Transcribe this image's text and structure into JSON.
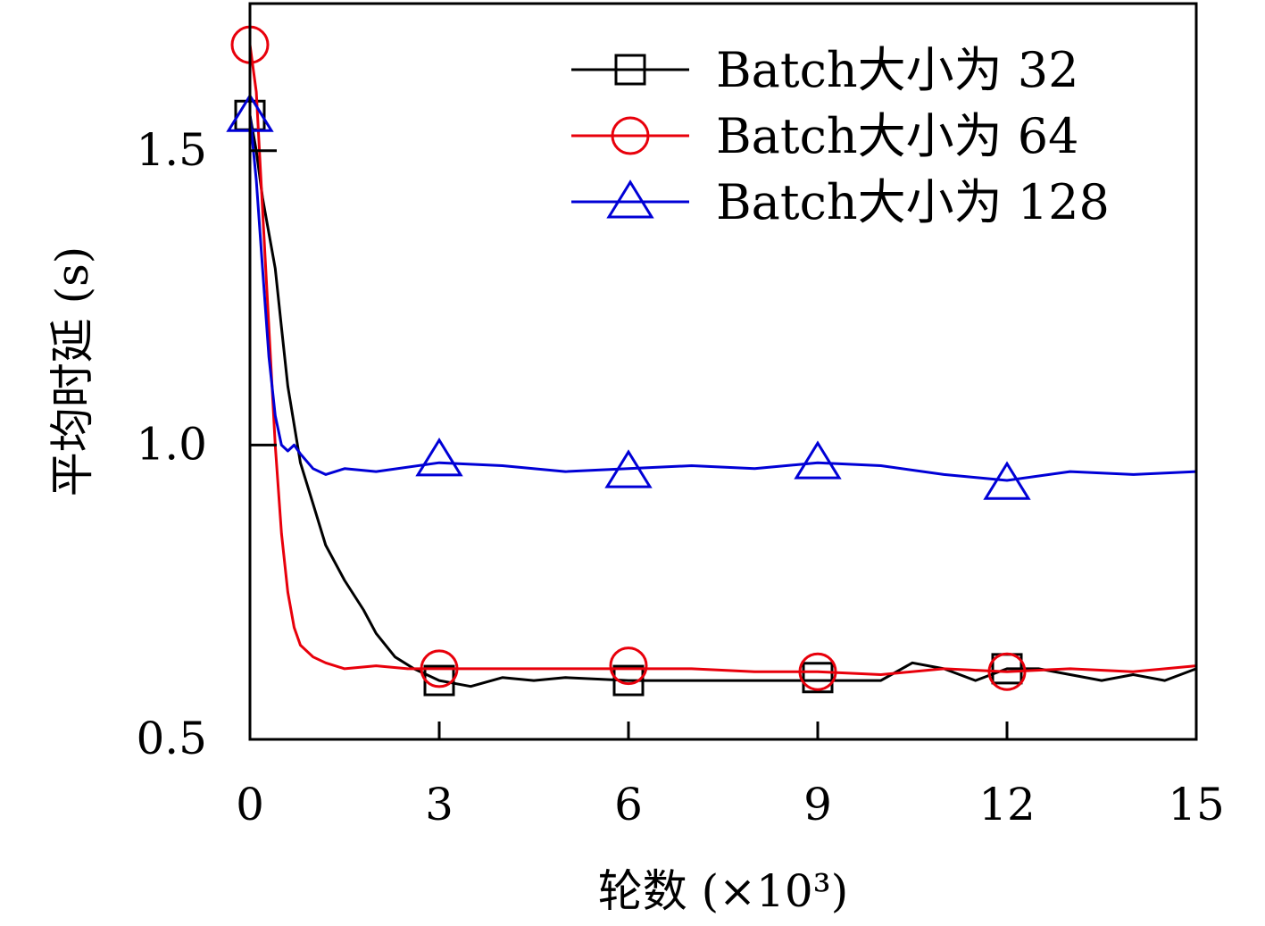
{
  "chart_data": {
    "type": "line",
    "xlabel": "轮数 (×10³)",
    "ylabel": "平均时延 (s)",
    "xlim": [
      0,
      15
    ],
    "ylim": [
      0.5,
      1.75
    ],
    "xticks": [
      0,
      3,
      6,
      9,
      12,
      15
    ],
    "xtick_labels": [
      "0",
      "3",
      "6",
      "9",
      "12",
      "15"
    ],
    "yticks": [
      0.5,
      1.0,
      1.5
    ],
    "ytick_labels": [
      "0.5",
      "1.0",
      "1.5"
    ],
    "grid": false,
    "legend_position": "top-right",
    "series": [
      {
        "name": "Batch大小为 32",
        "color": "#000000",
        "marker": "square",
        "x": [
          0,
          0.1,
          0.2,
          0.3,
          0.4,
          0.5,
          0.6,
          0.8,
          1.0,
          1.2,
          1.5,
          1.8,
          2.0,
          2.3,
          2.6,
          3.0,
          3.5,
          4.0,
          4.5,
          5.0,
          6.0,
          7.0,
          8.0,
          9.0,
          10.0,
          10.5,
          11.0,
          11.5,
          12.0,
          12.5,
          13.0,
          13.5,
          14.0,
          14.5,
          15.0
        ],
        "y": [
          1.56,
          1.5,
          1.42,
          1.36,
          1.3,
          1.2,
          1.1,
          0.97,
          0.9,
          0.83,
          0.77,
          0.72,
          0.68,
          0.64,
          0.62,
          0.6,
          0.59,
          0.605,
          0.6,
          0.605,
          0.6,
          0.6,
          0.6,
          0.6,
          0.6,
          0.63,
          0.62,
          0.6,
          0.62,
          0.62,
          0.61,
          0.6,
          0.61,
          0.6,
          0.62
        ],
        "marker_x": [
          0,
          3,
          6,
          9,
          12
        ],
        "marker_y": [
          1.56,
          0.6,
          0.6,
          0.605,
          0.62
        ]
      },
      {
        "name": "Batch大小为 64",
        "color": "#e8000b",
        "marker": "circle",
        "x": [
          0,
          0.1,
          0.2,
          0.3,
          0.4,
          0.5,
          0.6,
          0.7,
          0.8,
          1.0,
          1.2,
          1.5,
          2.0,
          2.5,
          3.0,
          4.0,
          5.0,
          6.0,
          7.0,
          8.0,
          9.0,
          10.0,
          11.0,
          12.0,
          13.0,
          14.0,
          15.0
        ],
        "y": [
          1.68,
          1.6,
          1.4,
          1.2,
          1.0,
          0.85,
          0.75,
          0.69,
          0.66,
          0.64,
          0.63,
          0.62,
          0.625,
          0.62,
          0.62,
          0.62,
          0.62,
          0.62,
          0.62,
          0.615,
          0.615,
          0.61,
          0.62,
          0.615,
          0.62,
          0.615,
          0.625
        ],
        "marker_x": [
          0,
          3,
          6,
          9,
          12
        ],
        "marker_y": [
          1.68,
          0.62,
          0.625,
          0.615,
          0.615
        ]
      },
      {
        "name": "Batch大小为 128",
        "color": "#0000d6",
        "marker": "triangle",
        "x": [
          0,
          0.1,
          0.2,
          0.3,
          0.4,
          0.5,
          0.6,
          0.7,
          0.8,
          1.0,
          1.2,
          1.5,
          2.0,
          3.0,
          4.0,
          5.0,
          6.0,
          7.0,
          8.0,
          9.0,
          10.0,
          11.0,
          12.0,
          13.0,
          14.0,
          15.0
        ],
        "y": [
          1.56,
          1.45,
          1.3,
          1.15,
          1.05,
          1.0,
          0.99,
          1.0,
          0.985,
          0.96,
          0.95,
          0.96,
          0.955,
          0.97,
          0.965,
          0.955,
          0.96,
          0.965,
          0.96,
          0.97,
          0.965,
          0.95,
          0.94,
          0.955,
          0.95,
          0.955
        ],
        "marker_x": [
          0,
          3,
          6,
          9,
          12
        ],
        "marker_y": [
          1.56,
          0.975,
          0.955,
          0.97,
          0.935
        ]
      }
    ]
  }
}
